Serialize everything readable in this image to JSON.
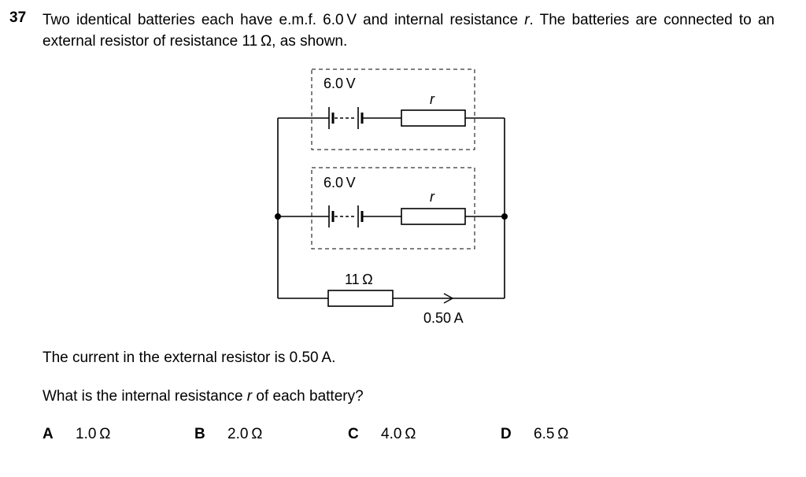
{
  "question": {
    "number": "37",
    "text_before_r": "Two identical batteries each have e.m.f. 6.0 V and internal resistance ",
    "r_symbol": "r",
    "text_after_r": ". The batteries are connected to an external resistor of resistance 11 Ω, as shown."
  },
  "diagram": {
    "battery1_label": "6.0 V",
    "battery2_label": "6.0 V",
    "internal1_label": "r",
    "internal2_label": "r",
    "external_label": "11 Ω",
    "current_label": "0.50 A"
  },
  "statement": "The current in the external resistor is 0.50 A.",
  "prompt": {
    "before_r": "What is the internal resistance ",
    "r_symbol": "r",
    "after_r": " of each battery?"
  },
  "options": [
    {
      "letter": "A",
      "value": "1.0 Ω"
    },
    {
      "letter": "B",
      "value": "2.0 Ω"
    },
    {
      "letter": "C",
      "value": "4.0 Ω"
    },
    {
      "letter": "D",
      "value": "6.5 Ω"
    }
  ]
}
